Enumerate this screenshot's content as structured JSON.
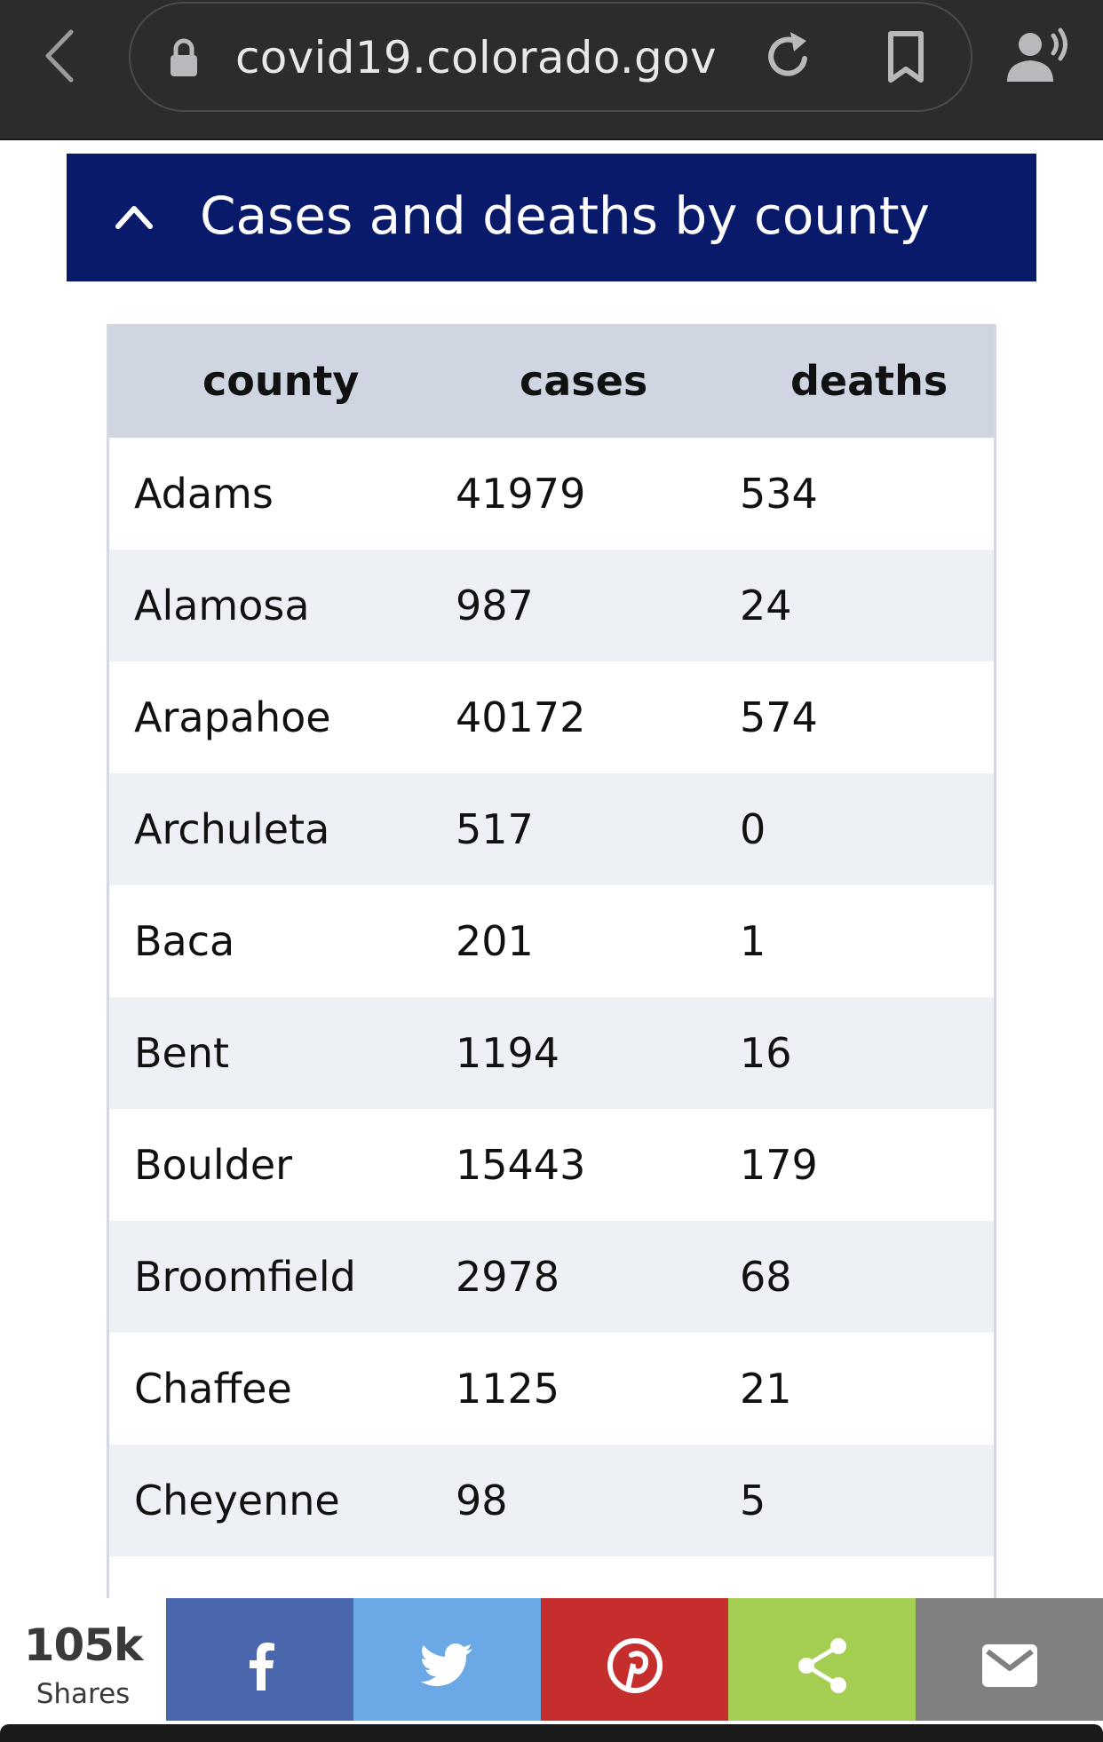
{
  "browser": {
    "url": "covid19.colorado.gov"
  },
  "accordion": {
    "title": "Cases and deaths by county"
  },
  "table": {
    "headers": [
      "county",
      "cases",
      "deaths"
    ],
    "rows": [
      [
        "Adams",
        "41979",
        "534"
      ],
      [
        "Alamosa",
        "987",
        "24"
      ],
      [
        "Arapahoe",
        "40172",
        "574"
      ],
      [
        "Archuleta",
        "517",
        "0"
      ],
      [
        "Baca",
        "201",
        "1"
      ],
      [
        "Bent",
        "1194",
        "16"
      ],
      [
        "Boulder",
        "15443",
        "179"
      ],
      [
        "Broomfield",
        "2978",
        "68"
      ],
      [
        "Chaffee",
        "1125",
        "21"
      ],
      [
        "Cheyenne",
        "98",
        "5"
      ]
    ]
  },
  "share": {
    "count": "105k",
    "label": "Shares",
    "buttons": [
      {
        "name": "facebook",
        "icon": "facebook-icon",
        "color": "#4a66ad"
      },
      {
        "name": "twitter",
        "icon": "twitter-icon",
        "color": "#6aa8e6"
      },
      {
        "name": "pinterest",
        "icon": "pinterest-icon",
        "color": "#c62d2d"
      },
      {
        "name": "share",
        "icon": "share-icon",
        "color": "#a5cf52"
      },
      {
        "name": "email",
        "icon": "email-icon",
        "color": "#808080"
      }
    ]
  },
  "colors": {
    "browser_bar": "#2b2c2e",
    "accordion_bg": "#0a1a6b",
    "table_header_bg": "#cfd6e2",
    "row_alt_bg": "#edf1f5"
  }
}
